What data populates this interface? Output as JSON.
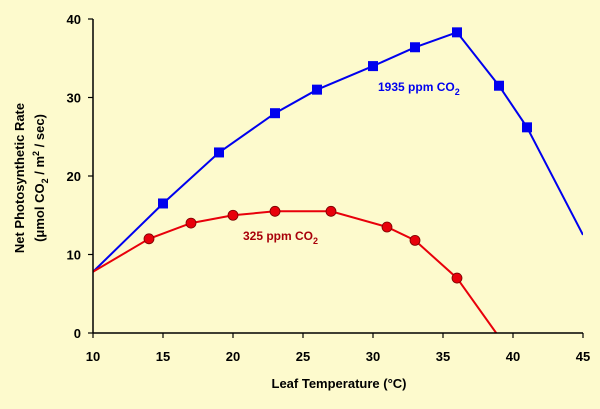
{
  "chart_data": {
    "type": "line",
    "xlabel": "Leaf Temperature (°C)",
    "ylabel": {
      "line1": "Net  Photosynthetic  Rate",
      "line2_prefix": "(μmol CO",
      "line2_sub": "2",
      "line2_mid": " / m",
      "line2_sup": "2",
      "line2_suffix": " / sec)"
    },
    "xlim": [
      10,
      45
    ],
    "ylim": [
      0,
      40
    ],
    "x_ticks": [
      10,
      15,
      20,
      25,
      30,
      35,
      40,
      45
    ],
    "y_ticks": [
      0,
      10,
      20,
      30,
      40
    ],
    "grid": false,
    "series": [
      {
        "name": "1935 ppm CO2",
        "label_main": "1935 ppm CO",
        "label_sub": "2",
        "color": "#0000ee",
        "marker": "square",
        "line_x": [
          10,
          15,
          19,
          23,
          26,
          30,
          33,
          36,
          39,
          41,
          45
        ],
        "line_y": [
          7.8,
          16.5,
          23.0,
          28.0,
          31.0,
          34.0,
          36.4,
          38.3,
          31.5,
          26.2,
          12.5
        ],
        "points_x": [
          15,
          19,
          23,
          26,
          30,
          33,
          36,
          39,
          41
        ],
        "points_y": [
          16.5,
          23.0,
          28.0,
          31.0,
          34.0,
          36.4,
          38.3,
          31.5,
          26.2
        ]
      },
      {
        "name": "325 ppm CO2",
        "label_main": "325 ppm CO",
        "label_sub": "2",
        "color": "#e8000b",
        "marker": "circle",
        "line_x": [
          10,
          14,
          17,
          20,
          23,
          27,
          31,
          33,
          36,
          38.8
        ],
        "line_y": [
          7.8,
          12.0,
          14.0,
          15.0,
          15.5,
          15.5,
          13.5,
          11.8,
          7.0,
          0
        ],
        "points_x": [
          14,
          17,
          20,
          23,
          27,
          31,
          33,
          36
        ],
        "points_y": [
          12.0,
          14.0,
          15.0,
          15.5,
          15.5,
          13.5,
          11.8,
          7.0
        ]
      }
    ]
  }
}
